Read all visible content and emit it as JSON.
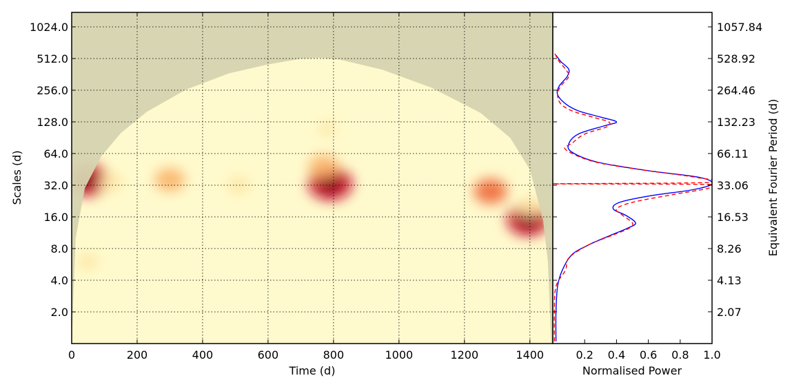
{
  "chart_data": [
    {
      "type": "heatmap",
      "xlabel": "Time (d)",
      "ylabel": "Scales (d)",
      "xlim": [
        0,
        1470
      ],
      "x_ticks": [
        0,
        200,
        400,
        600,
        800,
        1000,
        1200,
        1400
      ],
      "y_scale": "log2",
      "ylim": [
        1,
        1450
      ],
      "y_ticks": [
        2,
        4,
        8,
        16,
        32,
        64,
        128,
        256,
        512,
        1024
      ],
      "y_tick_labels": [
        "2.0",
        "4.0",
        "8.0",
        "16.0",
        "32.0",
        "64.0",
        "128.0",
        "256.0",
        "512.0",
        "1024.0"
      ],
      "grid": true,
      "colormap": [
        "#fffacd",
        "#fde7a6",
        "#f9b36a",
        "#ee6a3c",
        "#c8102e",
        "#7a0010"
      ],
      "cone_of_influence": {
        "color": "#d6d4b0",
        "points": [
          [
            0,
            1
          ],
          [
            12,
            10
          ],
          [
            40,
            30
          ],
          [
            90,
            60
          ],
          [
            150,
            100
          ],
          [
            230,
            160
          ],
          [
            350,
            260
          ],
          [
            480,
            370
          ],
          [
            600,
            450
          ],
          [
            700,
            510
          ],
          [
            760,
            520
          ],
          [
            820,
            500
          ],
          [
            950,
            400
          ],
          [
            1100,
            270
          ],
          [
            1250,
            155
          ],
          [
            1340,
            90
          ],
          [
            1400,
            45
          ],
          [
            1440,
            15
          ],
          [
            1455,
            6
          ],
          [
            1465,
            1
          ]
        ]
      },
      "hotspots": [
        {
          "time": 50,
          "scale": 36,
          "power": 0.95
        },
        {
          "time": 120,
          "scale": 34,
          "power": 0.35
        },
        {
          "time": 300,
          "scale": 36,
          "power": 0.55
        },
        {
          "time": 510,
          "scale": 32,
          "power": 0.3
        },
        {
          "time": 790,
          "scale": 33,
          "power": 1.0
        },
        {
          "time": 770,
          "scale": 48,
          "power": 0.55
        },
        {
          "time": 1280,
          "scale": 28,
          "power": 0.65
        },
        {
          "time": 1395,
          "scale": 15,
          "power": 0.95
        },
        {
          "time": 1400,
          "scale": 20,
          "power": 0.4
        },
        {
          "time": 50,
          "scale": 6,
          "power": 0.25
        },
        {
          "time": 780,
          "scale": 110,
          "power": 0.15
        }
      ]
    },
    {
      "type": "line",
      "xlabel": "Normalised Power",
      "ylabel": "Equivalent Fourier Period (d)",
      "xlim": [
        0,
        1.0
      ],
      "x_ticks": [
        0.2,
        0.4,
        0.6,
        0.8,
        1.0
      ],
      "x_tick_labels": [
        "0.2",
        "0.4",
        "0.6",
        "0.8",
        "1.0"
      ],
      "y_ticks": [
        2.07,
        4.13,
        8.26,
        16.53,
        33.06,
        66.11,
        132.23,
        264.46,
        528.92,
        1057.84
      ],
      "y_tick_labels": [
        "2.07",
        "4.13",
        "8.26",
        "16.53",
        "33.06",
        "66.11",
        "132.23",
        "264.46",
        "528.92",
        "1057.84"
      ],
      "series": [
        {
          "color": "#0000ff",
          "style": "solid",
          "points": [
            [
              0.02,
              1.05
            ],
            [
              0.02,
              2
            ],
            [
              0.03,
              3.5
            ],
            [
              0.06,
              5
            ],
            [
              0.12,
              7
            ],
            [
              0.22,
              8.6
            ],
            [
              0.35,
              10.5
            ],
            [
              0.47,
              12.5
            ],
            [
              0.52,
              14
            ],
            [
              0.46,
              16.5
            ],
            [
              0.38,
              19
            ],
            [
              0.42,
              22
            ],
            [
              0.62,
              25.5
            ],
            [
              0.88,
              29
            ],
            [
              1.0,
              33
            ],
            [
              0.92,
              38
            ],
            [
              0.6,
              44
            ],
            [
              0.28,
              53
            ],
            [
              0.12,
              66
            ],
            [
              0.1,
              79
            ],
            [
              0.16,
              98
            ],
            [
              0.32,
              117
            ],
            [
              0.4,
              128
            ],
            [
              0.3,
              142
            ],
            [
              0.16,
              163
            ],
            [
              0.08,
              190
            ],
            [
              0.03,
              232
            ],
            [
              0.04,
              280
            ],
            [
              0.09,
              345
            ],
            [
              0.1,
              405
            ],
            [
              0.05,
              480
            ],
            [
              0.02,
              550
            ]
          ]
        },
        {
          "color": "#ff0000",
          "style": "dashed",
          "points": [
            [
              0.01,
              1.05
            ],
            [
              0.01,
              2
            ],
            [
              0.02,
              3.5
            ],
            [
              0.08,
              5
            ],
            [
              0.1,
              6.5
            ],
            [
              0.22,
              8.6
            ],
            [
              0.36,
              10.5
            ],
            [
              0.48,
              12.5
            ],
            [
              0.5,
              14
            ],
            [
              0.44,
              16.5
            ],
            [
              0.4,
              19
            ],
            [
              0.5,
              22
            ],
            [
              0.75,
              26
            ],
            [
              0.98,
              30
            ],
            [
              0.98,
              32.5
            ],
            [
              0.0,
              33
            ],
            [
              0.99,
              34
            ],
            [
              0.9,
              38
            ],
            [
              0.55,
              45
            ],
            [
              0.25,
              54
            ],
            [
              0.08,
              70
            ],
            [
              0.12,
              80
            ],
            [
              0.2,
              98
            ],
            [
              0.34,
              115
            ],
            [
              0.35,
              128
            ],
            [
              0.25,
              142
            ],
            [
              0.12,
              163
            ],
            [
              0.05,
              190
            ],
            [
              0.03,
              232
            ],
            [
              0.05,
              280
            ],
            [
              0.1,
              345
            ],
            [
              0.08,
              405
            ],
            [
              0.04,
              480
            ],
            [
              0.01,
              580
            ]
          ]
        }
      ]
    }
  ]
}
